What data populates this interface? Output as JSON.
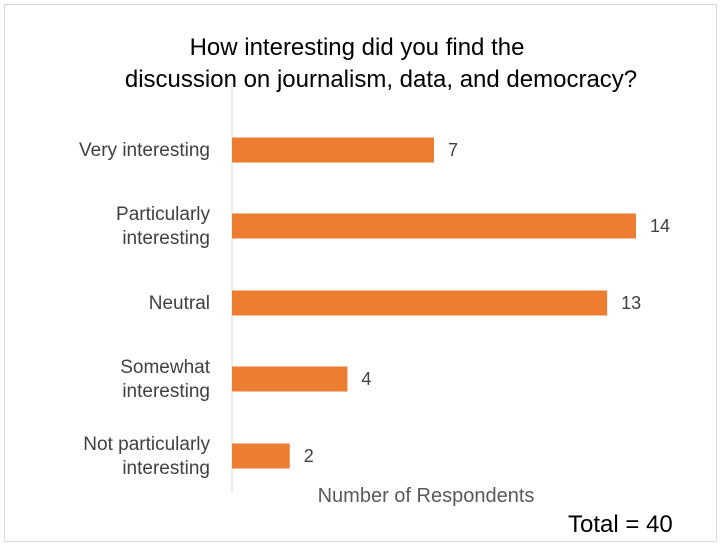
{
  "chart_data": {
    "type": "bar",
    "orientation": "horizontal",
    "title_lines": [
      "How interesting did you find the",
      "discussion on journalism, data, and democracy?"
    ],
    "categories": [
      [
        "Very interesting"
      ],
      [
        "Particularly",
        "interesting"
      ],
      [
        "Neutral"
      ],
      [
        "Somewhat",
        "interesting"
      ],
      [
        "Not particularly",
        "interesting"
      ]
    ],
    "values": [
      7,
      14,
      13,
      4,
      2
    ],
    "xlabel": "Number of Respondents",
    "annotation": "Total = 40",
    "xlim": [
      0,
      14
    ],
    "grid": false,
    "data_labels": true,
    "colors": {
      "bar": "#ED7D31",
      "axis": "#d9d9d9"
    }
  }
}
